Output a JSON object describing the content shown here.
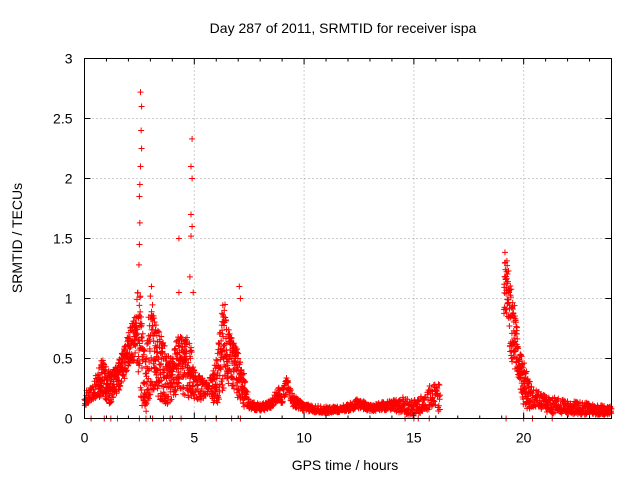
{
  "chart_data": {
    "type": "scatter",
    "title": "Day 287 of 2011, SRMTID for receiver ispa",
    "xlabel": "GPS time / hours",
    "ylabel": "SRMTID / TECUs",
    "xlim": [
      0,
      24
    ],
    "ylim": [
      0,
      3
    ],
    "x_ticks": [
      0,
      5,
      10,
      15,
      20
    ],
    "x_tick_labels": [
      "0",
      "5",
      "10",
      "15",
      "20"
    ],
    "y_ticks": [
      0,
      0.5,
      1,
      1.5,
      2,
      2.5,
      3
    ],
    "y_tick_labels": [
      "0",
      "0.5",
      "1",
      "1.5",
      "2",
      "2.5",
      "3"
    ],
    "grid": true,
    "legend": "none",
    "marker": "plus",
    "color": "#ff0000",
    "series": [
      {
        "name": "SRMTID",
        "envelope": [
          [
            0.0,
            0.1,
            0.22
          ],
          [
            0.3,
            0.15,
            0.26
          ],
          [
            0.6,
            0.15,
            0.4
          ],
          [
            0.8,
            0.2,
            0.5
          ],
          [
            1.0,
            0.15,
            0.42
          ],
          [
            1.2,
            0.1,
            0.38
          ],
          [
            1.5,
            0.2,
            0.45
          ],
          [
            1.8,
            0.3,
            0.6
          ],
          [
            2.0,
            0.4,
            0.75
          ],
          [
            2.3,
            0.5,
            0.85
          ],
          [
            2.5,
            0.3,
            1.2
          ],
          [
            2.6,
            0.1,
            0.8
          ],
          [
            2.8,
            0.05,
            0.5
          ],
          [
            3.0,
            0.2,
            1.1
          ],
          [
            3.2,
            0.25,
            0.8
          ],
          [
            3.5,
            0.1,
            0.7
          ],
          [
            3.8,
            0.05,
            0.55
          ],
          [
            4.0,
            0.15,
            0.5
          ],
          [
            4.3,
            0.25,
            0.75
          ],
          [
            4.5,
            0.2,
            0.65
          ],
          [
            4.8,
            0.15,
            0.7
          ],
          [
            5.0,
            0.15,
            0.4
          ],
          [
            5.3,
            0.15,
            0.35
          ],
          [
            5.6,
            0.2,
            0.3
          ],
          [
            6.0,
            0.1,
            0.5
          ],
          [
            6.3,
            0.2,
            0.95
          ],
          [
            6.5,
            0.3,
            0.8
          ],
          [
            6.8,
            0.25,
            0.65
          ],
          [
            7.0,
            0.15,
            0.55
          ],
          [
            7.2,
            0.1,
            0.45
          ],
          [
            7.5,
            0.08,
            0.15
          ],
          [
            8.0,
            0.06,
            0.12
          ],
          [
            8.5,
            0.08,
            0.15
          ],
          [
            8.8,
            0.15,
            0.28
          ],
          [
            9.0,
            0.12,
            0.25
          ],
          [
            9.2,
            0.2,
            0.35
          ],
          [
            9.5,
            0.1,
            0.2
          ],
          [
            10.0,
            0.06,
            0.12
          ],
          [
            11.0,
            0.04,
            0.1
          ],
          [
            11.5,
            0.05,
            0.1
          ],
          [
            12.0,
            0.06,
            0.12
          ],
          [
            12.5,
            0.08,
            0.17
          ],
          [
            13.0,
            0.06,
            0.12
          ],
          [
            14.0,
            0.07,
            0.15
          ],
          [
            14.5,
            0.04,
            0.18
          ],
          [
            15.0,
            0.02,
            0.15
          ],
          [
            15.5,
            0.05,
            0.22
          ],
          [
            15.8,
            0.08,
            0.3
          ],
          [
            16.1,
            0.05,
            0.28
          ],
          [
            19.2,
            0.9,
            1.45
          ],
          [
            19.4,
            0.5,
            1.1
          ],
          [
            19.6,
            0.4,
            0.95
          ],
          [
            19.8,
            0.3,
            0.55
          ],
          [
            20.0,
            0.1,
            0.5
          ],
          [
            20.2,
            0.05,
            0.35
          ],
          [
            20.5,
            0.1,
            0.25
          ],
          [
            21.0,
            0.05,
            0.2
          ],
          [
            22.0,
            0.03,
            0.15
          ],
          [
            23.0,
            0.03,
            0.13
          ],
          [
            24.0,
            0.03,
            0.1
          ]
        ],
        "spikes": [
          [
            2.55,
            2.72
          ],
          [
            2.6,
            2.6
          ],
          [
            2.58,
            2.4
          ],
          [
            2.6,
            2.25
          ],
          [
            2.55,
            2.1
          ],
          [
            2.52,
            1.95
          ],
          [
            2.5,
            1.85
          ],
          [
            2.52,
            1.63
          ],
          [
            2.5,
            1.45
          ],
          [
            2.48,
            1.28
          ],
          [
            3.05,
            1.1
          ],
          [
            4.3,
            1.5
          ],
          [
            4.3,
            1.05
          ],
          [
            4.9,
            2.33
          ],
          [
            4.85,
            2.1
          ],
          [
            4.9,
            2.0
          ],
          [
            4.85,
            1.7
          ],
          [
            4.9,
            1.6
          ],
          [
            4.85,
            1.52
          ],
          [
            4.8,
            1.18
          ],
          [
            4.95,
            1.05
          ],
          [
            6.4,
            0.95
          ],
          [
            7.05,
            1.1
          ],
          [
            7.1,
            1.0
          ]
        ],
        "gaps": [
          [
            16.2,
            19.1
          ]
        ],
        "baseline_points": [
          0.3,
          0.9,
          1.2,
          1.5,
          2.5,
          2.8,
          3.1,
          3.6,
          3.9,
          4.4,
          5.5,
          6.0,
          6.7,
          7.1,
          14.6,
          15.0,
          15.2,
          15.7,
          19.2,
          20.0,
          20.4,
          21.3
        ]
      }
    ]
  }
}
